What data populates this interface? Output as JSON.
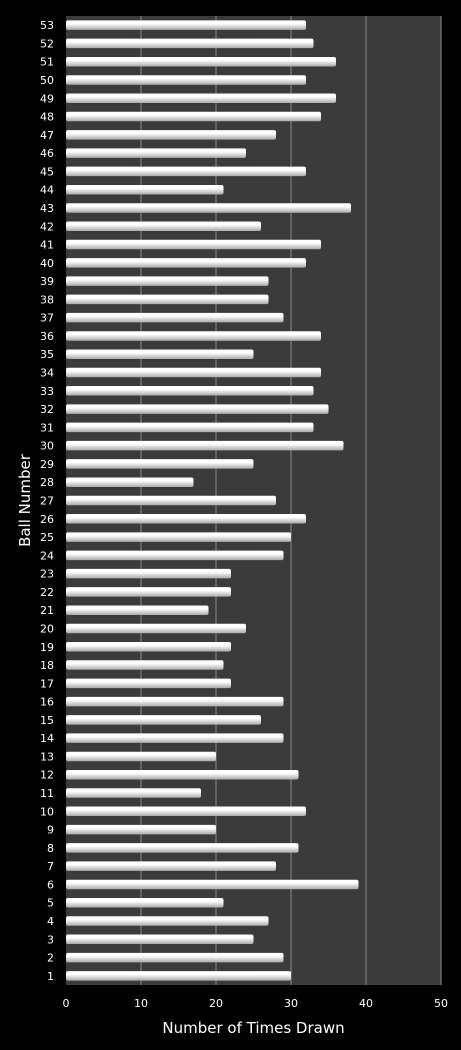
{
  "colors": {
    "page_background": "#000000",
    "plot_background": "#3b3b3b",
    "gridline": "#8a8a8a",
    "bar_light": "#ffffff",
    "bar_dark": "#a9a9a9"
  },
  "chart_data": {
    "type": "bar",
    "orientation": "horizontal",
    "title": "",
    "xlabel": "Number of Times Drawn",
    "ylabel": "Ball Number",
    "xlim": [
      0,
      50
    ],
    "x_ticks": [
      0,
      10,
      20,
      30,
      40,
      50
    ],
    "grid": "vertical major gridlines",
    "legend": "none",
    "categories": [
      "1",
      "2",
      "3",
      "4",
      "5",
      "6",
      "7",
      "8",
      "9",
      "10",
      "11",
      "12",
      "13",
      "14",
      "15",
      "16",
      "17",
      "18",
      "19",
      "20",
      "21",
      "22",
      "23",
      "24",
      "25",
      "26",
      "27",
      "28",
      "29",
      "30",
      "31",
      "32",
      "33",
      "34",
      "35",
      "36",
      "37",
      "38",
      "39",
      "40",
      "41",
      "42",
      "43",
      "44",
      "45",
      "46",
      "47",
      "48",
      "49",
      "50",
      "51",
      "52",
      "53"
    ],
    "values": [
      30,
      29,
      25,
      27,
      21,
      39,
      28,
      31,
      20,
      32,
      18,
      31,
      20,
      29,
      26,
      29,
      22,
      21,
      22,
      24,
      19,
      22,
      22,
      29,
      30,
      32,
      28,
      17,
      25,
      37,
      33,
      35,
      33,
      34,
      25,
      34,
      29,
      27,
      27,
      32,
      34,
      26,
      38,
      21,
      32,
      24,
      28,
      34,
      36,
      32,
      36,
      33,
      32
    ]
  }
}
